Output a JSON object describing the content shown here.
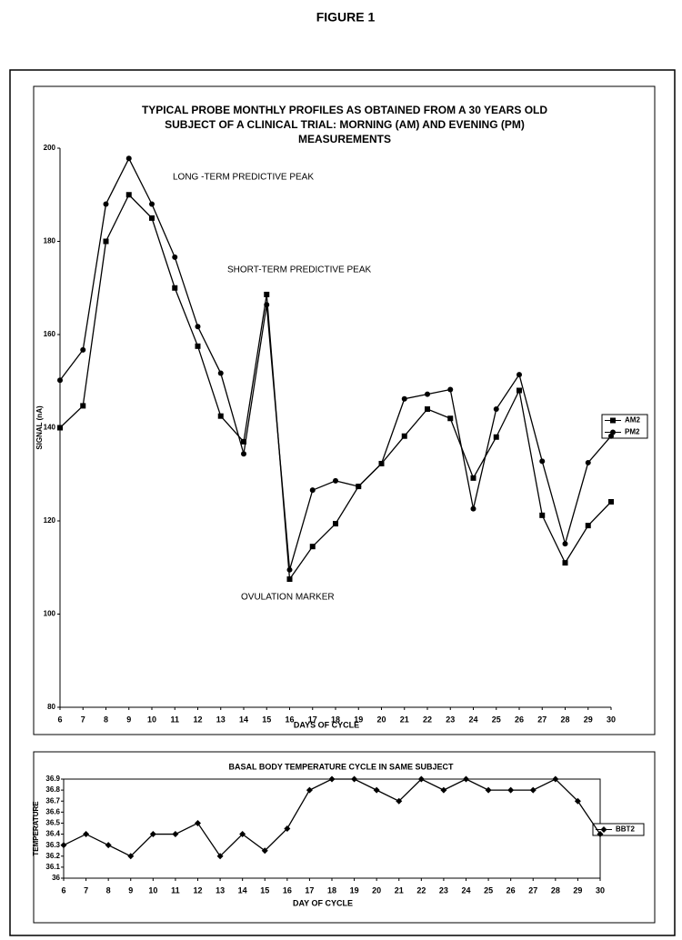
{
  "figure_title": "FIGURE 1",
  "chart_data": [
    {
      "type": "line",
      "title": [
        "TYPICAL PROBE MONTHLY PROFILES AS OBTAINED FROM A 30 YEARS OLD",
        "SUBJECT OF A CLINICAL TRIAL: MORNING (AM) AND EVENING (PM)",
        "MEASUREMENTS"
      ],
      "x_label": "DAYS OF CYCLE",
      "y_label": "SIGNAL (nA)",
      "annotations": [
        "LONG -TERM PREDICTIVE PEAK",
        "SHORT-TERM PREDICTIVE PEAK",
        "OVULATION MARKER"
      ],
      "x": [
        6,
        7,
        8,
        9,
        10,
        11,
        12,
        13,
        14,
        15,
        16,
        17,
        18,
        19,
        20,
        21,
        22,
        23,
        24,
        25,
        26,
        27,
        28,
        29,
        30
      ],
      "xlim": [
        6,
        30
      ],
      "xticks": [
        6,
        7,
        8,
        9,
        10,
        11,
        12,
        13,
        14,
        15,
        16,
        17,
        18,
        19,
        20,
        21,
        22,
        23,
        24,
        25,
        26,
        27,
        28,
        29,
        30
      ],
      "ylim": [
        80,
        200
      ],
      "yticks": [
        80,
        100,
        120,
        140,
        160,
        180,
        200
      ],
      "legend": "right",
      "series": [
        {
          "name": "AM2",
          "color": "#000000",
          "marker": "square",
          "values": [
            140,
            144.7,
            180,
            190,
            185,
            170,
            157.5,
            142.5,
            137,
            168.6,
            107.5,
            114.5,
            119.4,
            127.4,
            132.3,
            138.2,
            144,
            142,
            129.2,
            138,
            148,
            121.2,
            111,
            119,
            124.1
          ]
        },
        {
          "name": "PM2",
          "color": "#000000",
          "marker": "circle",
          "values": [
            150.2,
            156.7,
            188,
            197.8,
            188,
            176.6,
            161.7,
            151.7,
            134.4,
            166.4,
            109.5,
            126.6,
            128.6,
            127.4,
            132.3,
            146.2,
            147.2,
            148.2,
            122.6,
            144,
            151.4,
            132.8,
            115.1,
            132.5,
            138.2
          ]
        }
      ]
    },
    {
      "type": "line",
      "title": [
        "BASAL BODY TEMPERATURE CYCLE IN SAME SUBJECT"
      ],
      "x_label": "DAY OF CYCLE",
      "y_label": "TEMPERATURE",
      "x": [
        6,
        7,
        8,
        9,
        10,
        11,
        12,
        13,
        14,
        15,
        16,
        17,
        18,
        19,
        20,
        21,
        22,
        23,
        24,
        25,
        26,
        27,
        28,
        29,
        30
      ],
      "xlim": [
        6,
        30
      ],
      "xticks": [
        6,
        7,
        8,
        9,
        10,
        11,
        12,
        13,
        14,
        15,
        16,
        17,
        18,
        19,
        20,
        21,
        22,
        23,
        24,
        25,
        26,
        27,
        28,
        29,
        30
      ],
      "ylim": [
        36,
        36.9
      ],
      "yticks": [
        36,
        36.1,
        36.2,
        36.3,
        36.4,
        36.5,
        36.6,
        36.7,
        36.8,
        36.9
      ],
      "legend": "right",
      "series": [
        {
          "name": "BBT2",
          "color": "#000000",
          "marker": "diamond",
          "values": [
            36.3,
            36.4,
            36.3,
            36.2,
            36.4,
            36.4,
            36.5,
            36.2,
            36.4,
            36.25,
            36.45,
            36.8,
            36.9,
            36.9,
            36.8,
            36.7,
            36.9,
            36.8,
            36.9,
            36.8,
            36.8,
            36.8,
            36.9,
            36.7,
            36.4
          ]
        }
      ]
    }
  ]
}
